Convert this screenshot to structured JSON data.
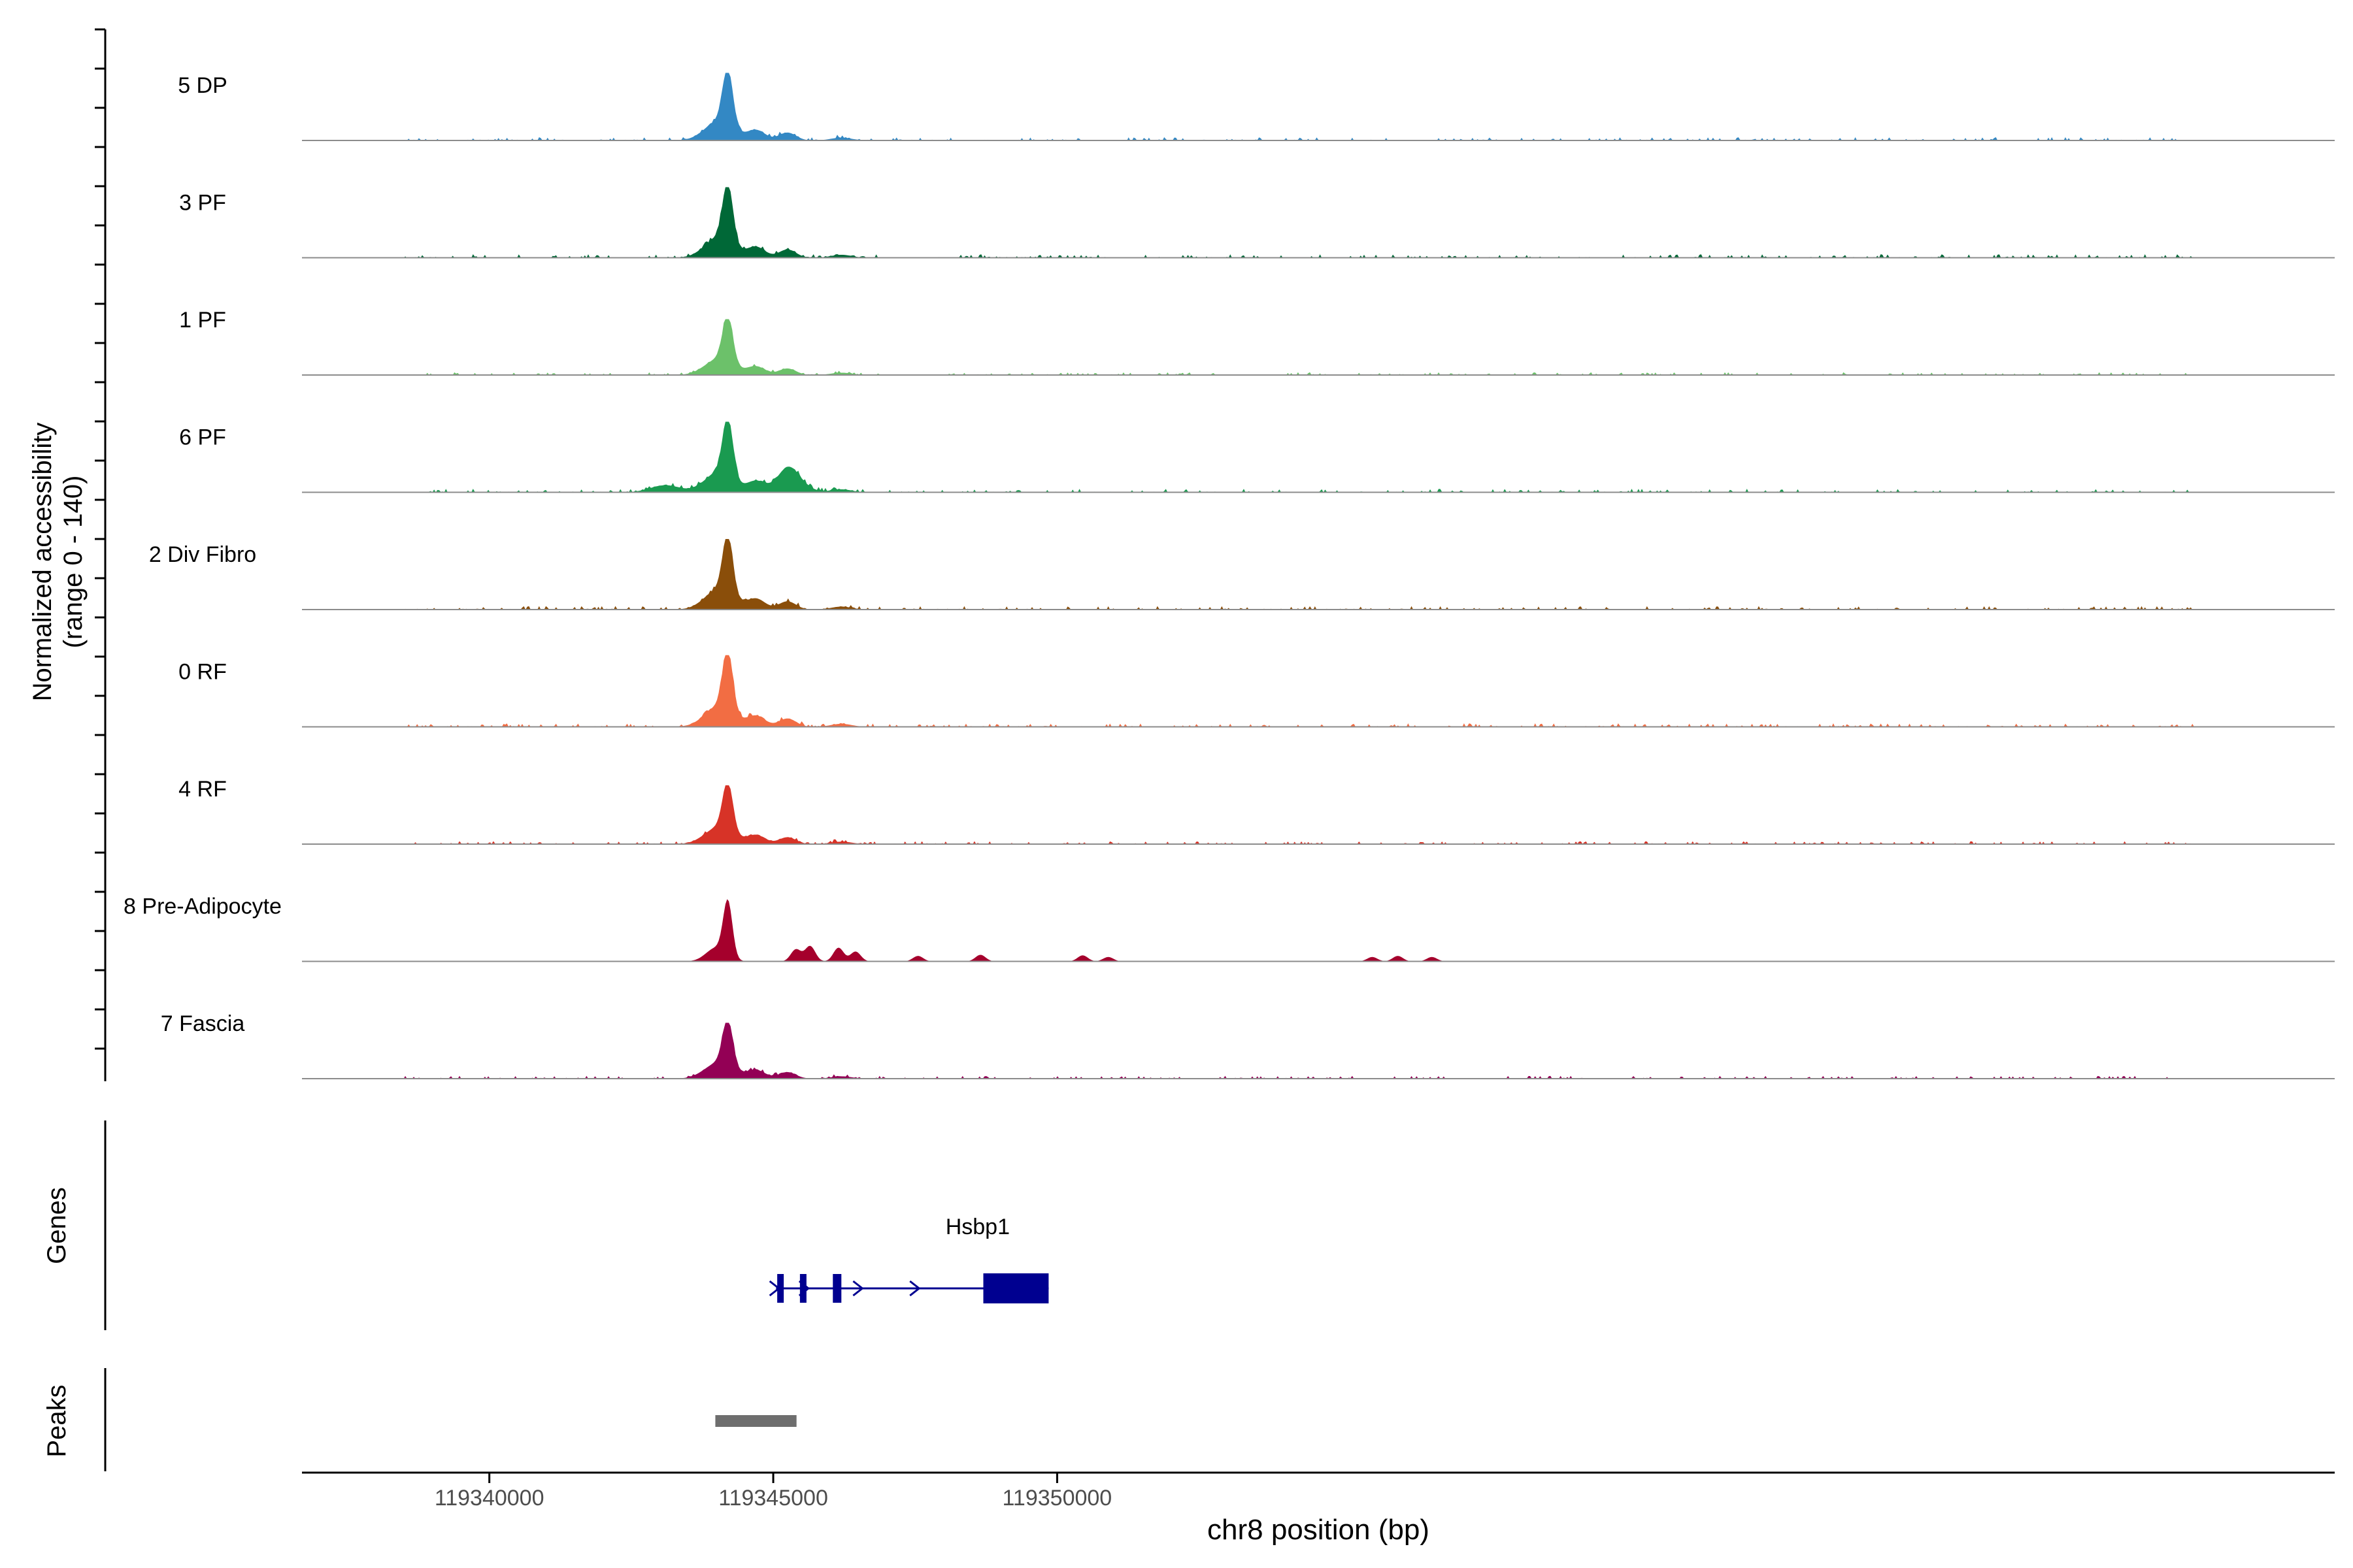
{
  "chart_data": {
    "type": "area",
    "title": "",
    "xlabel": "chr8 position (bp)",
    "ylabel": "Normalized accessibility",
    "ylabel_range": "(range 0 - 140)",
    "ylim": [
      0,
      140
    ],
    "xlim": [
      119336700,
      119372500
    ],
    "x_ticks": [
      {
        "value": 119340000,
        "label": "119340000"
      },
      {
        "value": 119345000,
        "label": "119345000"
      },
      {
        "value": 119350000,
        "label": "119350000"
      }
    ],
    "colors": {
      "baseline": "#8c8c8c",
      "axis": "#000000",
      "gene": "#000090",
      "peak": "#6e6e6e",
      "text": "#000000",
      "tick_text": "#4d4d4d"
    },
    "series": [
      {
        "name": "5 DP",
        "color": "#3388c4",
        "peak_height": 115,
        "profile": "a"
      },
      {
        "name": "3 PF",
        "color": "#006837",
        "peak_height": 120,
        "profile": "a"
      },
      {
        "name": "1 PF",
        "color": "#6cc16a",
        "peak_height": 95,
        "profile": "a"
      },
      {
        "name": "6 PF",
        "color": "#1a9a50",
        "peak_height": 120,
        "profile": "b"
      },
      {
        "name": "2 Div Fibro",
        "color": "#8a4e0a",
        "peak_height": 120,
        "profile": "a"
      },
      {
        "name": "0 RF",
        "color": "#f26d43",
        "peak_height": 122,
        "profile": "a"
      },
      {
        "name": "4 RF",
        "color": "#d73327",
        "peak_height": 100,
        "profile": "a"
      },
      {
        "name": "8 Pre-Adipocyte",
        "color": "#a5002c",
        "peak_height": 112,
        "profile": "c"
      },
      {
        "name": "7 Fascia",
        "color": "#930055",
        "peak_height": 95,
        "profile": "a"
      }
    ],
    "genes_track": {
      "label": "Genes",
      "gene_name": "Hsbp1",
      "start": 119345050,
      "end": 119349850,
      "strand": "+",
      "exons": [
        {
          "start": 119345070,
          "end": 119345170
        },
        {
          "start": 119345470,
          "end": 119345550
        },
        {
          "start": 119346050,
          "end": 119346200
        },
        {
          "start": 119348700,
          "end": 119349850
        }
      ],
      "arrows": [
        119345030,
        119345550,
        119346500,
        119347500
      ]
    },
    "peaks_track": {
      "label": "Peaks",
      "peaks": [
        {
          "start": 119343980,
          "end": 119345410
        }
      ]
    }
  }
}
